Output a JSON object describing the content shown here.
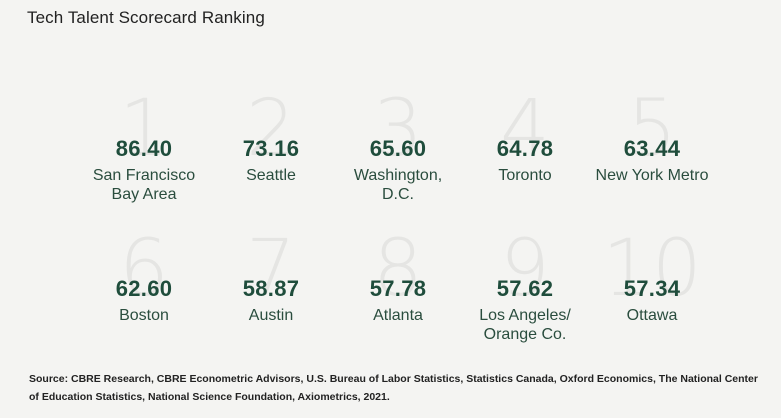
{
  "title": "Tech Talent Scorecard Ranking",
  "rankings": [
    {
      "rank": "1",
      "score": "86.40",
      "city": "San Francisco\nBay Area"
    },
    {
      "rank": "2",
      "score": "73.16",
      "city": "Seattle"
    },
    {
      "rank": "3",
      "score": "65.60",
      "city": "Washington,\nD.C."
    },
    {
      "rank": "4",
      "score": "64.78",
      "city": "Toronto"
    },
    {
      "rank": "5",
      "score": "63.44",
      "city": "New York Metro"
    },
    {
      "rank": "6",
      "score": "62.60",
      "city": "Boston"
    },
    {
      "rank": "7",
      "score": "58.87",
      "city": "Austin"
    },
    {
      "rank": "8",
      "score": "57.78",
      "city": "Atlanta"
    },
    {
      "rank": "9",
      "score": "57.62",
      "city": "Los Angeles/\nOrange Co."
    },
    {
      "rank": "10",
      "score": "57.34",
      "city": "Ottawa"
    }
  ],
  "source": "Source: CBRE Research, CBRE Econometric Advisors, U.S. Bureau of Labor Statistics, Statistics Canada, Oxford Economics, The National Center of Education Statistics, National Science Foundation, Axiometrics, 2021.",
  "colors": {
    "score": "#1f4d3c",
    "rank_watermark": "#e5e5e3",
    "background": "#f4f4f2"
  }
}
